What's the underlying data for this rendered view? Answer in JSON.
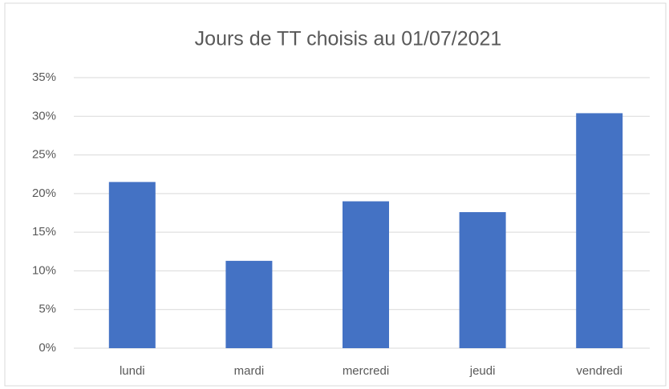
{
  "chart_data": {
    "type": "bar",
    "title": "Jours de TT choisis au 01/07/2021",
    "categories": [
      "lundi",
      "mardi",
      "mercredi",
      "jeudi",
      "vendredi"
    ],
    "values": [
      21.5,
      11.3,
      19.0,
      17.6,
      30.4
    ],
    "color": "#4472c4",
    "ylim": [
      0,
      35
    ],
    "yticks": [
      {
        "value": 0,
        "label": "0%"
      },
      {
        "value": 5,
        "label": "5%"
      },
      {
        "value": 10,
        "label": "10%"
      },
      {
        "value": 15,
        "label": "15%"
      },
      {
        "value": 20,
        "label": "20%"
      },
      {
        "value": 25,
        "label": "25%"
      },
      {
        "value": 30,
        "label": "30%"
      },
      {
        "value": 35,
        "label": "35%"
      }
    ],
    "grid": true
  }
}
